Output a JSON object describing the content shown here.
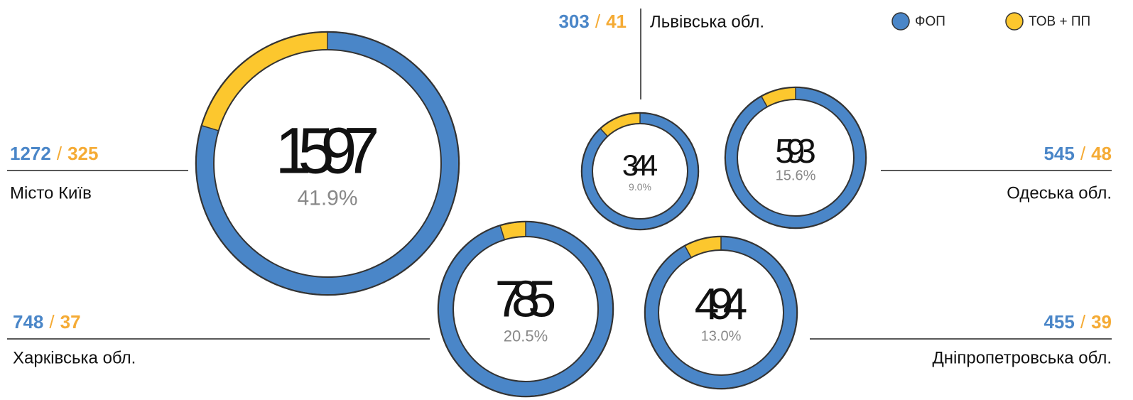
{
  "legend": [
    {
      "name": "ФОП",
      "color": "#4a86c8"
    },
    {
      "name": "ТОВ + ПП",
      "color": "#fcc72e"
    }
  ],
  "separator": "/",
  "chart_data": [
    {
      "type": "donut",
      "title": "Місто Київ",
      "values": [
        1272,
        325
      ],
      "total": 1597,
      "share": {
        "value": 41.9,
        "label": "41.9%"
      }
    },
    {
      "type": "donut",
      "title": "Харківська обл.",
      "values": [
        748,
        37
      ],
      "total": 785,
      "share": {
        "value": 20.5,
        "label": "20.5%"
      }
    },
    {
      "type": "donut",
      "title": "Львівська обл.",
      "values": [
        303,
        41
      ],
      "total": 344,
      "share": {
        "value": 9.0,
        "label": "9.0%"
      }
    },
    {
      "type": "donut",
      "title": "Одеська обл.",
      "values": [
        545,
        48
      ],
      "total": 593,
      "share": {
        "value": 15.6,
        "label": "15.6%"
      }
    },
    {
      "type": "donut",
      "title": "Дніпропетровська обл.",
      "values": [
        455,
        39
      ],
      "total": 494,
      "share": {
        "value": 13.0,
        "label": "13.0%"
      }
    }
  ]
}
